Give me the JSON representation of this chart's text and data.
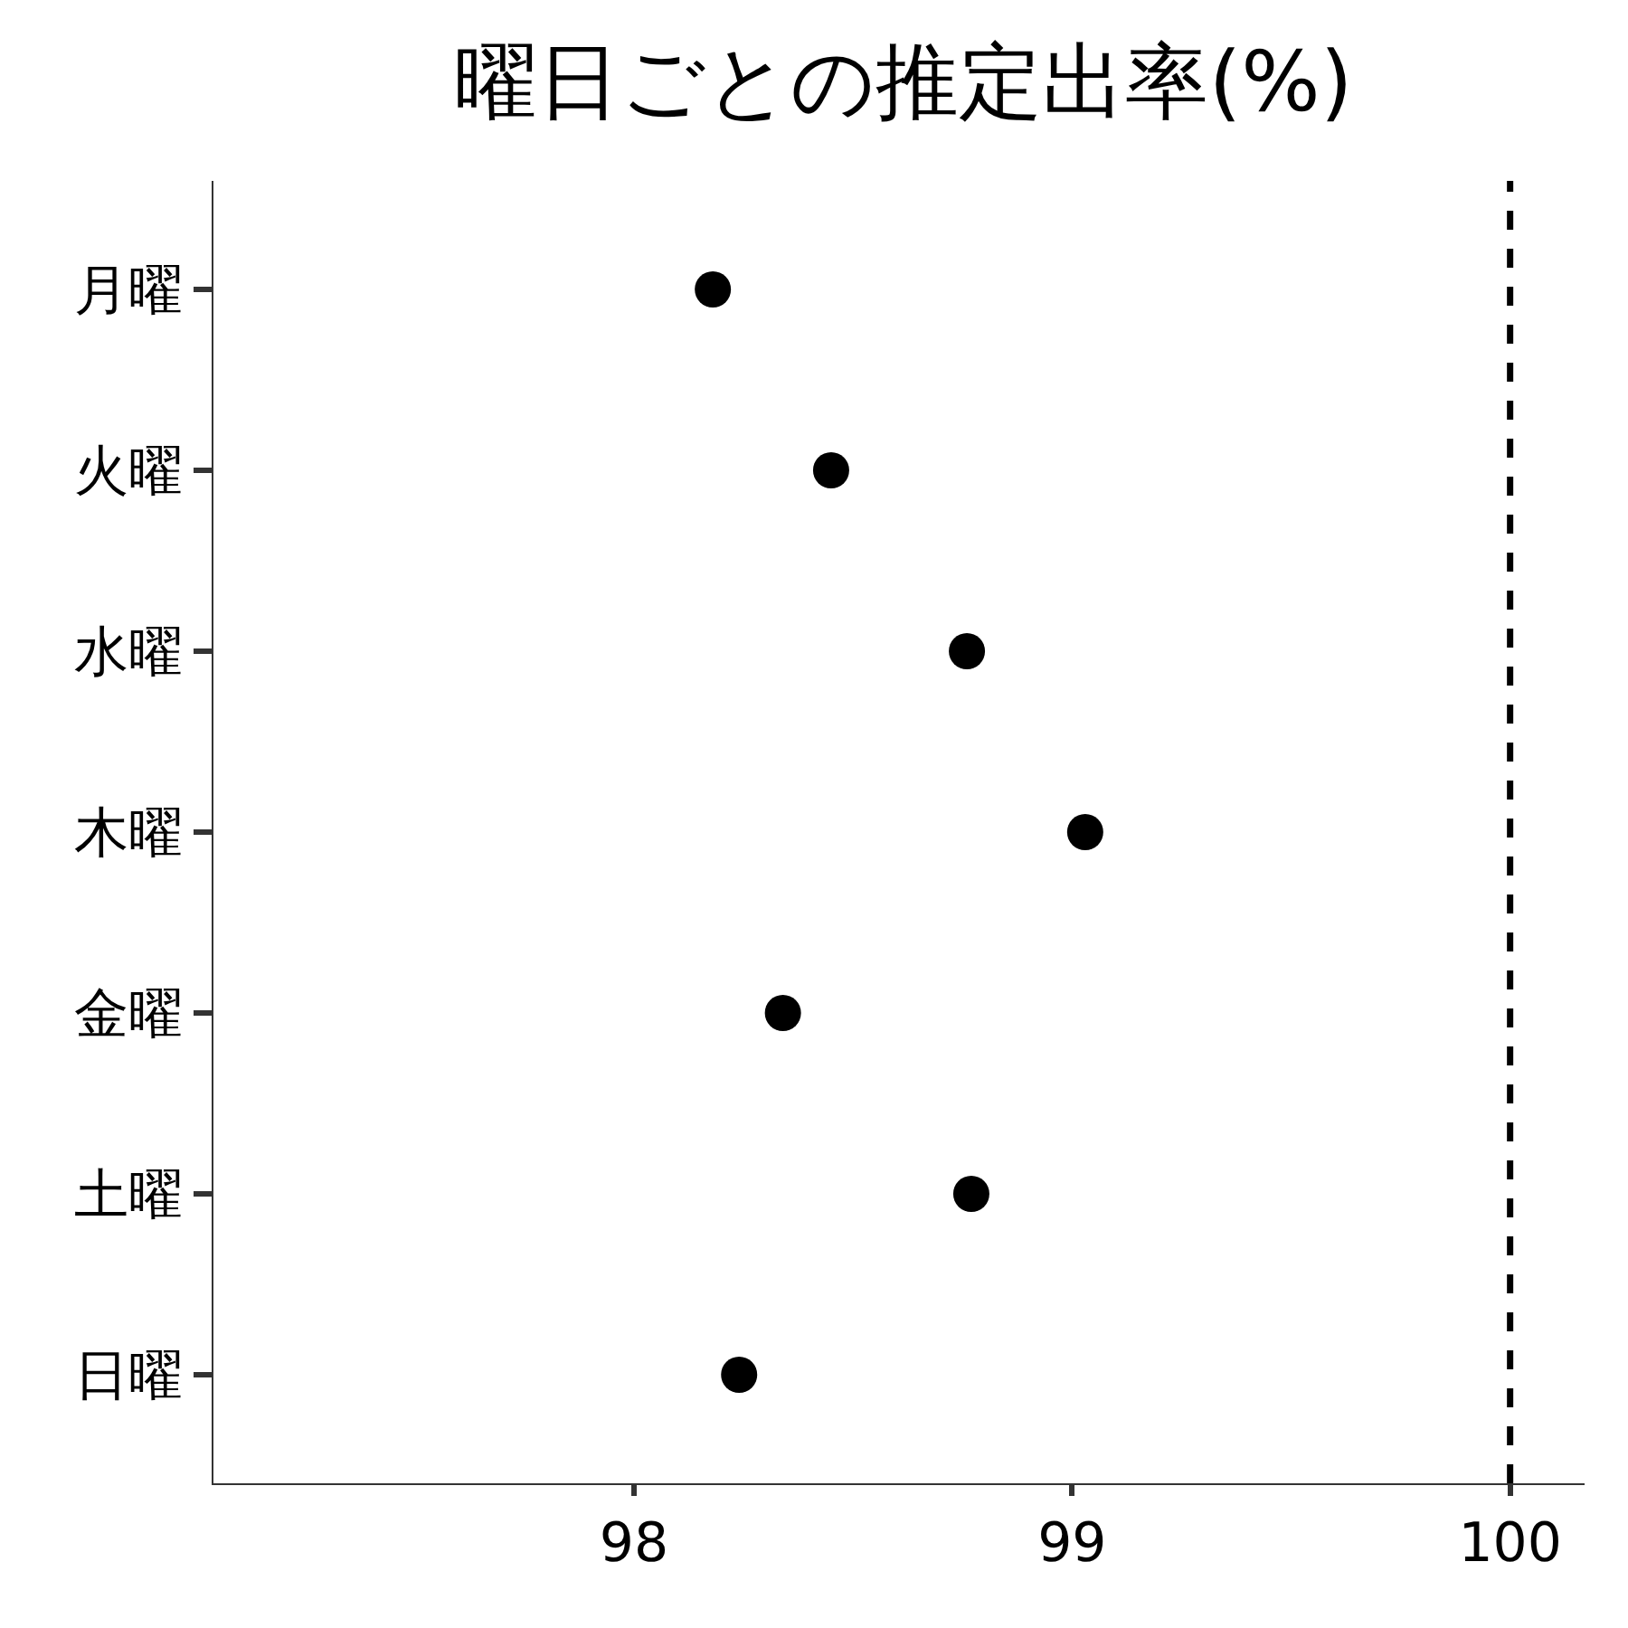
{
  "chart_data": {
    "type": "scatter",
    "title": "曜日ごとの推定出率(%)",
    "orientation": "horizontal",
    "categories": [
      "月曜",
      "火曜",
      "水曜",
      "木曜",
      "金曜",
      "土曜",
      "日曜"
    ],
    "values": [
      98.18,
      98.45,
      98.76,
      99.03,
      98.34,
      98.77,
      98.24
    ],
    "color": "#000000",
    "marker": "circle",
    "xlim": [
      97.04,
      100.17
    ],
    "xticks": [
      98,
      99,
      100
    ],
    "ref_lines": [
      {
        "axis": "x",
        "value": 100,
        "color": "#000000",
        "line_style": "dashed"
      }
    ],
    "grid": false
  }
}
